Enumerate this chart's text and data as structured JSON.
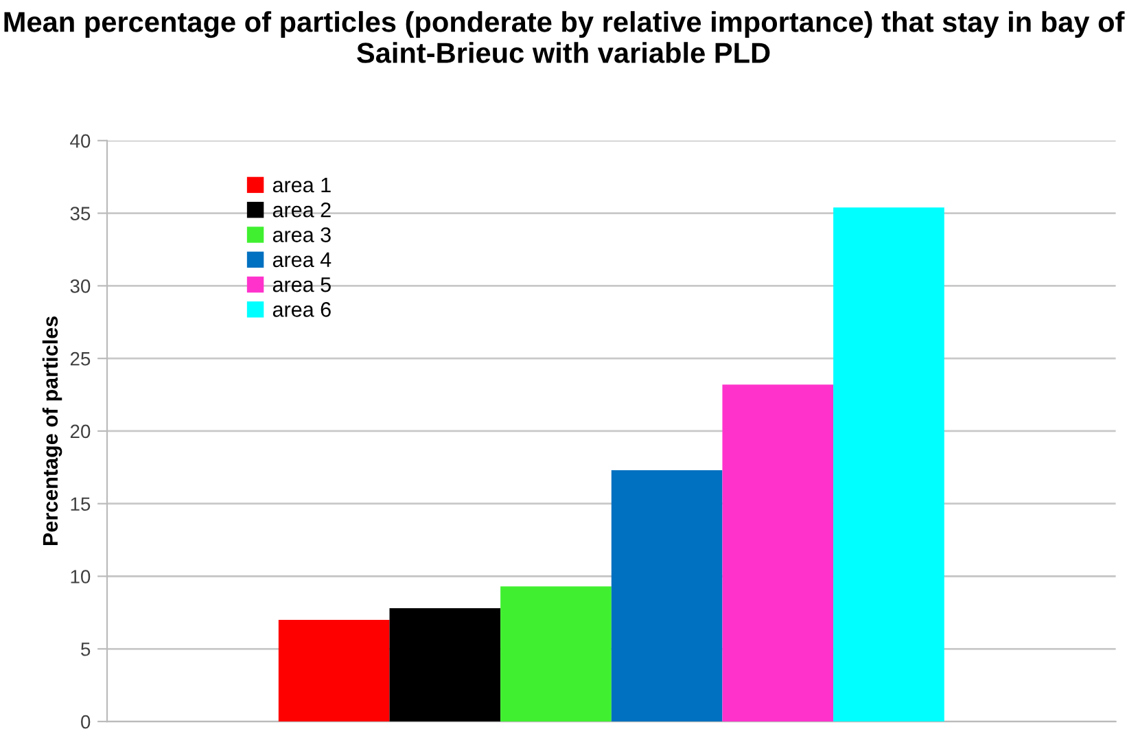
{
  "chart_data": {
    "type": "bar",
    "title": "Mean percentage of particles (ponderate by relative importance) that stay in bay of Saint-Brieuc with variable PLD",
    "ylabel": "Percentage of particles",
    "categories": [
      null
    ],
    "series": [
      {
        "name": "area 1",
        "color": "#ff0000",
        "values": [
          7.0
        ]
      },
      {
        "name": "area 2",
        "color": "#000000",
        "values": [
          7.8
        ]
      },
      {
        "name": "area 3",
        "color": "#40f030",
        "values": [
          9.3
        ]
      },
      {
        "name": "area 4",
        "color": "#0070c0",
        "values": [
          17.3
        ]
      },
      {
        "name": "area 5",
        "color": "#ff33cc",
        "values": [
          23.2
        ]
      },
      {
        "name": "area 6",
        "color": "#00ffff",
        "values": [
          35.4
        ]
      }
    ],
    "ylim": [
      0,
      40
    ],
    "yticks": [
      0,
      5,
      10,
      15,
      20,
      25,
      30,
      35,
      40
    ],
    "grid": "y",
    "legend": "top left"
  }
}
